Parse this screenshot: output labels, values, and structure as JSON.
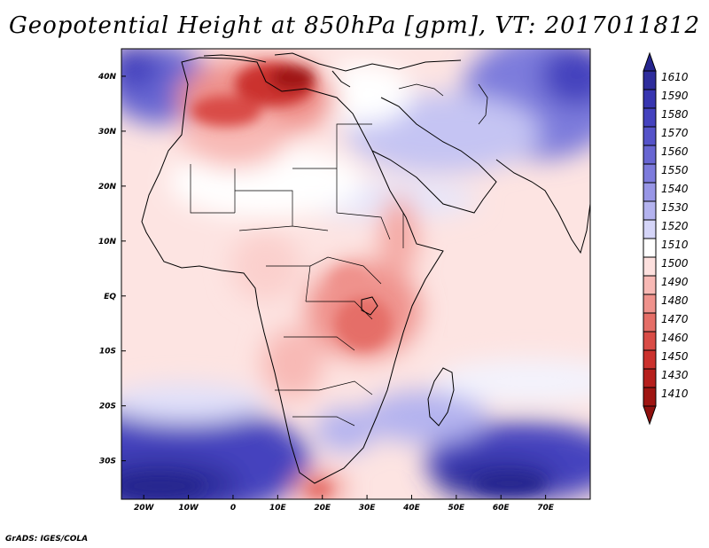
{
  "title": "Geopotential Height at 850hPa [gpm], VT: 2017011812",
  "credit": "GrADS: IGES/COLA",
  "map": {
    "lon_range": [
      -25,
      80
    ],
    "lat_range": [
      -37,
      45
    ],
    "lon_ticks": [
      {
        "value": -20,
        "label": "20W"
      },
      {
        "value": -10,
        "label": "10W"
      },
      {
        "value": 0,
        "label": "0"
      },
      {
        "value": 10,
        "label": "10E"
      },
      {
        "value": 20,
        "label": "20E"
      },
      {
        "value": 30,
        "label": "30E"
      },
      {
        "value": 40,
        "label": "40E"
      },
      {
        "value": 50,
        "label": "50E"
      },
      {
        "value": 60,
        "label": "60E"
      },
      {
        "value": 70,
        "label": "70E"
      }
    ],
    "lat_ticks": [
      {
        "value": 40,
        "label": "40N"
      },
      {
        "value": 30,
        "label": "30N"
      },
      {
        "value": 20,
        "label": "20N"
      },
      {
        "value": 10,
        "label": "10N"
      },
      {
        "value": 0,
        "label": "EQ"
      },
      {
        "value": -10,
        "label": "10S"
      },
      {
        "value": -20,
        "label": "20S"
      },
      {
        "value": -30,
        "label": "30S"
      }
    ]
  },
  "colorbar": {
    "levels": [
      {
        "label": "1610",
        "color": "#2e2d9c"
      },
      {
        "label": "1590",
        "color": "#3735b0"
      },
      {
        "label": "1580",
        "color": "#4442be"
      },
      {
        "label": "1570",
        "color": "#5553c9"
      },
      {
        "label": "1560",
        "color": "#6866d2"
      },
      {
        "label": "1550",
        "color": "#7d7bdc"
      },
      {
        "label": "1540",
        "color": "#9896e6"
      },
      {
        "label": "1530",
        "color": "#b4b3ef"
      },
      {
        "label": "1520",
        "color": "#d5d5f8"
      },
      {
        "label": "1510",
        "color": "#ffffff"
      },
      {
        "label": "1500",
        "color": "#fde0de"
      },
      {
        "label": "1490",
        "color": "#f8b9b5"
      },
      {
        "label": "1480",
        "color": "#ef928c"
      },
      {
        "label": "1470",
        "color": "#e56e67"
      },
      {
        "label": "1460",
        "color": "#d94c46"
      },
      {
        "label": "1450",
        "color": "#cb312d"
      },
      {
        "label": "1430",
        "color": "#b61f1c"
      },
      {
        "label": "1410",
        "color": "#9f1512"
      }
    ],
    "top_arrow_color": "#26258f",
    "bottom_arrow_color": "#8f100e"
  }
}
